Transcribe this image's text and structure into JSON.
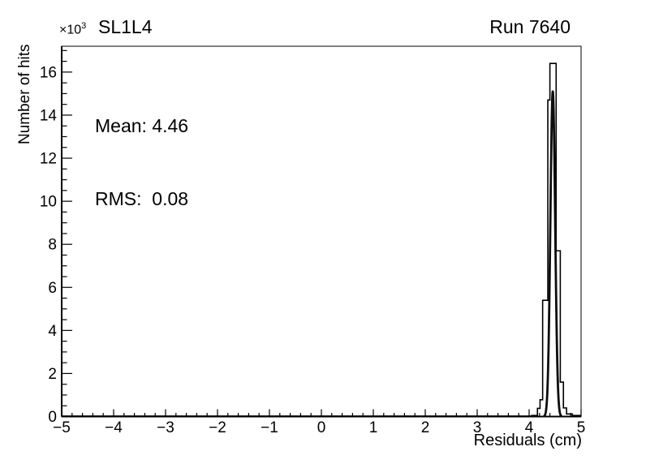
{
  "header": {
    "y_multiplier_base": "×10",
    "y_multiplier_exp": "3",
    "title": "SL1L4",
    "run_label": "Run 7640"
  },
  "stats": {
    "mean_line": "Mean: 4.46",
    "rms_line": "RMS:  0.08"
  },
  "colors": {
    "background": "#ffffff",
    "axis": "#000000",
    "histogram_line": "#000000",
    "fit_line": "#0d0d0d",
    "text": "#000000"
  },
  "chart_data": {
    "type": "bar",
    "subtype": "histogram-with-gaussian-fit",
    "title": "SL1L4",
    "annotation_right": "Run 7640",
    "xlabel": "Residuals (cm)",
    "ylabel": "Number of hits",
    "y_axis_multiplier_label": "×10³",
    "y_unit_multiplier": 1000,
    "grid": false,
    "legend": "none",
    "xlim": [
      -5,
      5
    ],
    "ylim": [
      0,
      17.2
    ],
    "x_major_ticks": [
      {
        "v": -5,
        "label": "−5"
      },
      {
        "v": -4,
        "label": "−4"
      },
      {
        "v": -3,
        "label": "−3"
      },
      {
        "v": -2,
        "label": "−2"
      },
      {
        "v": -1,
        "label": "−1"
      },
      {
        "v": 0,
        "label": "0"
      },
      {
        "v": 1,
        "label": "1"
      },
      {
        "v": 2,
        "label": "2"
      },
      {
        "v": 3,
        "label": "3"
      },
      {
        "v": 4,
        "label": "4"
      },
      {
        "v": 5,
        "label": "5"
      }
    ],
    "x_minor_step": 0.2,
    "y_major_ticks": [
      {
        "v": 0,
        "label": "0"
      },
      {
        "v": 2,
        "label": "2"
      },
      {
        "v": 4,
        "label": "4"
      },
      {
        "v": 6,
        "label": "6"
      },
      {
        "v": 8,
        "label": "8"
      },
      {
        "v": 10,
        "label": "10"
      },
      {
        "v": 12,
        "label": "12"
      },
      {
        "v": 14,
        "label": "14"
      },
      {
        "v": 16,
        "label": "16"
      }
    ],
    "y_minor_step": 0.5,
    "stats": {
      "mean": 4.46,
      "rms": 0.08
    },
    "histogram_steps_units_1e3": [
      {
        "x0": -5.0,
        "x1": 4.05,
        "v": 0.02
      },
      {
        "x0": 4.05,
        "x1": 4.16,
        "v": 0.05
      },
      {
        "x0": 4.16,
        "x1": 4.21,
        "v": 0.38
      },
      {
        "x0": 4.21,
        "x1": 4.26,
        "v": 0.78
      },
      {
        "x0": 4.26,
        "x1": 4.36,
        "v": 5.4
      },
      {
        "x0": 4.36,
        "x1": 4.4,
        "v": 14.7
      },
      {
        "x0": 4.4,
        "x1": 4.52,
        "v": 16.4
      },
      {
        "x0": 4.52,
        "x1": 4.6,
        "v": 7.7
      },
      {
        "x0": 4.6,
        "x1": 4.66,
        "v": 1.6
      },
      {
        "x0": 4.66,
        "x1": 4.72,
        "v": 0.4
      },
      {
        "x0": 4.72,
        "x1": 4.83,
        "v": 0.12
      },
      {
        "x0": 4.83,
        "x1": 5.0,
        "v": 0.05
      }
    ],
    "fit": {
      "type": "gaussian",
      "mean": 4.455,
      "sigma": 0.046,
      "amplitude": 15.1
    }
  }
}
